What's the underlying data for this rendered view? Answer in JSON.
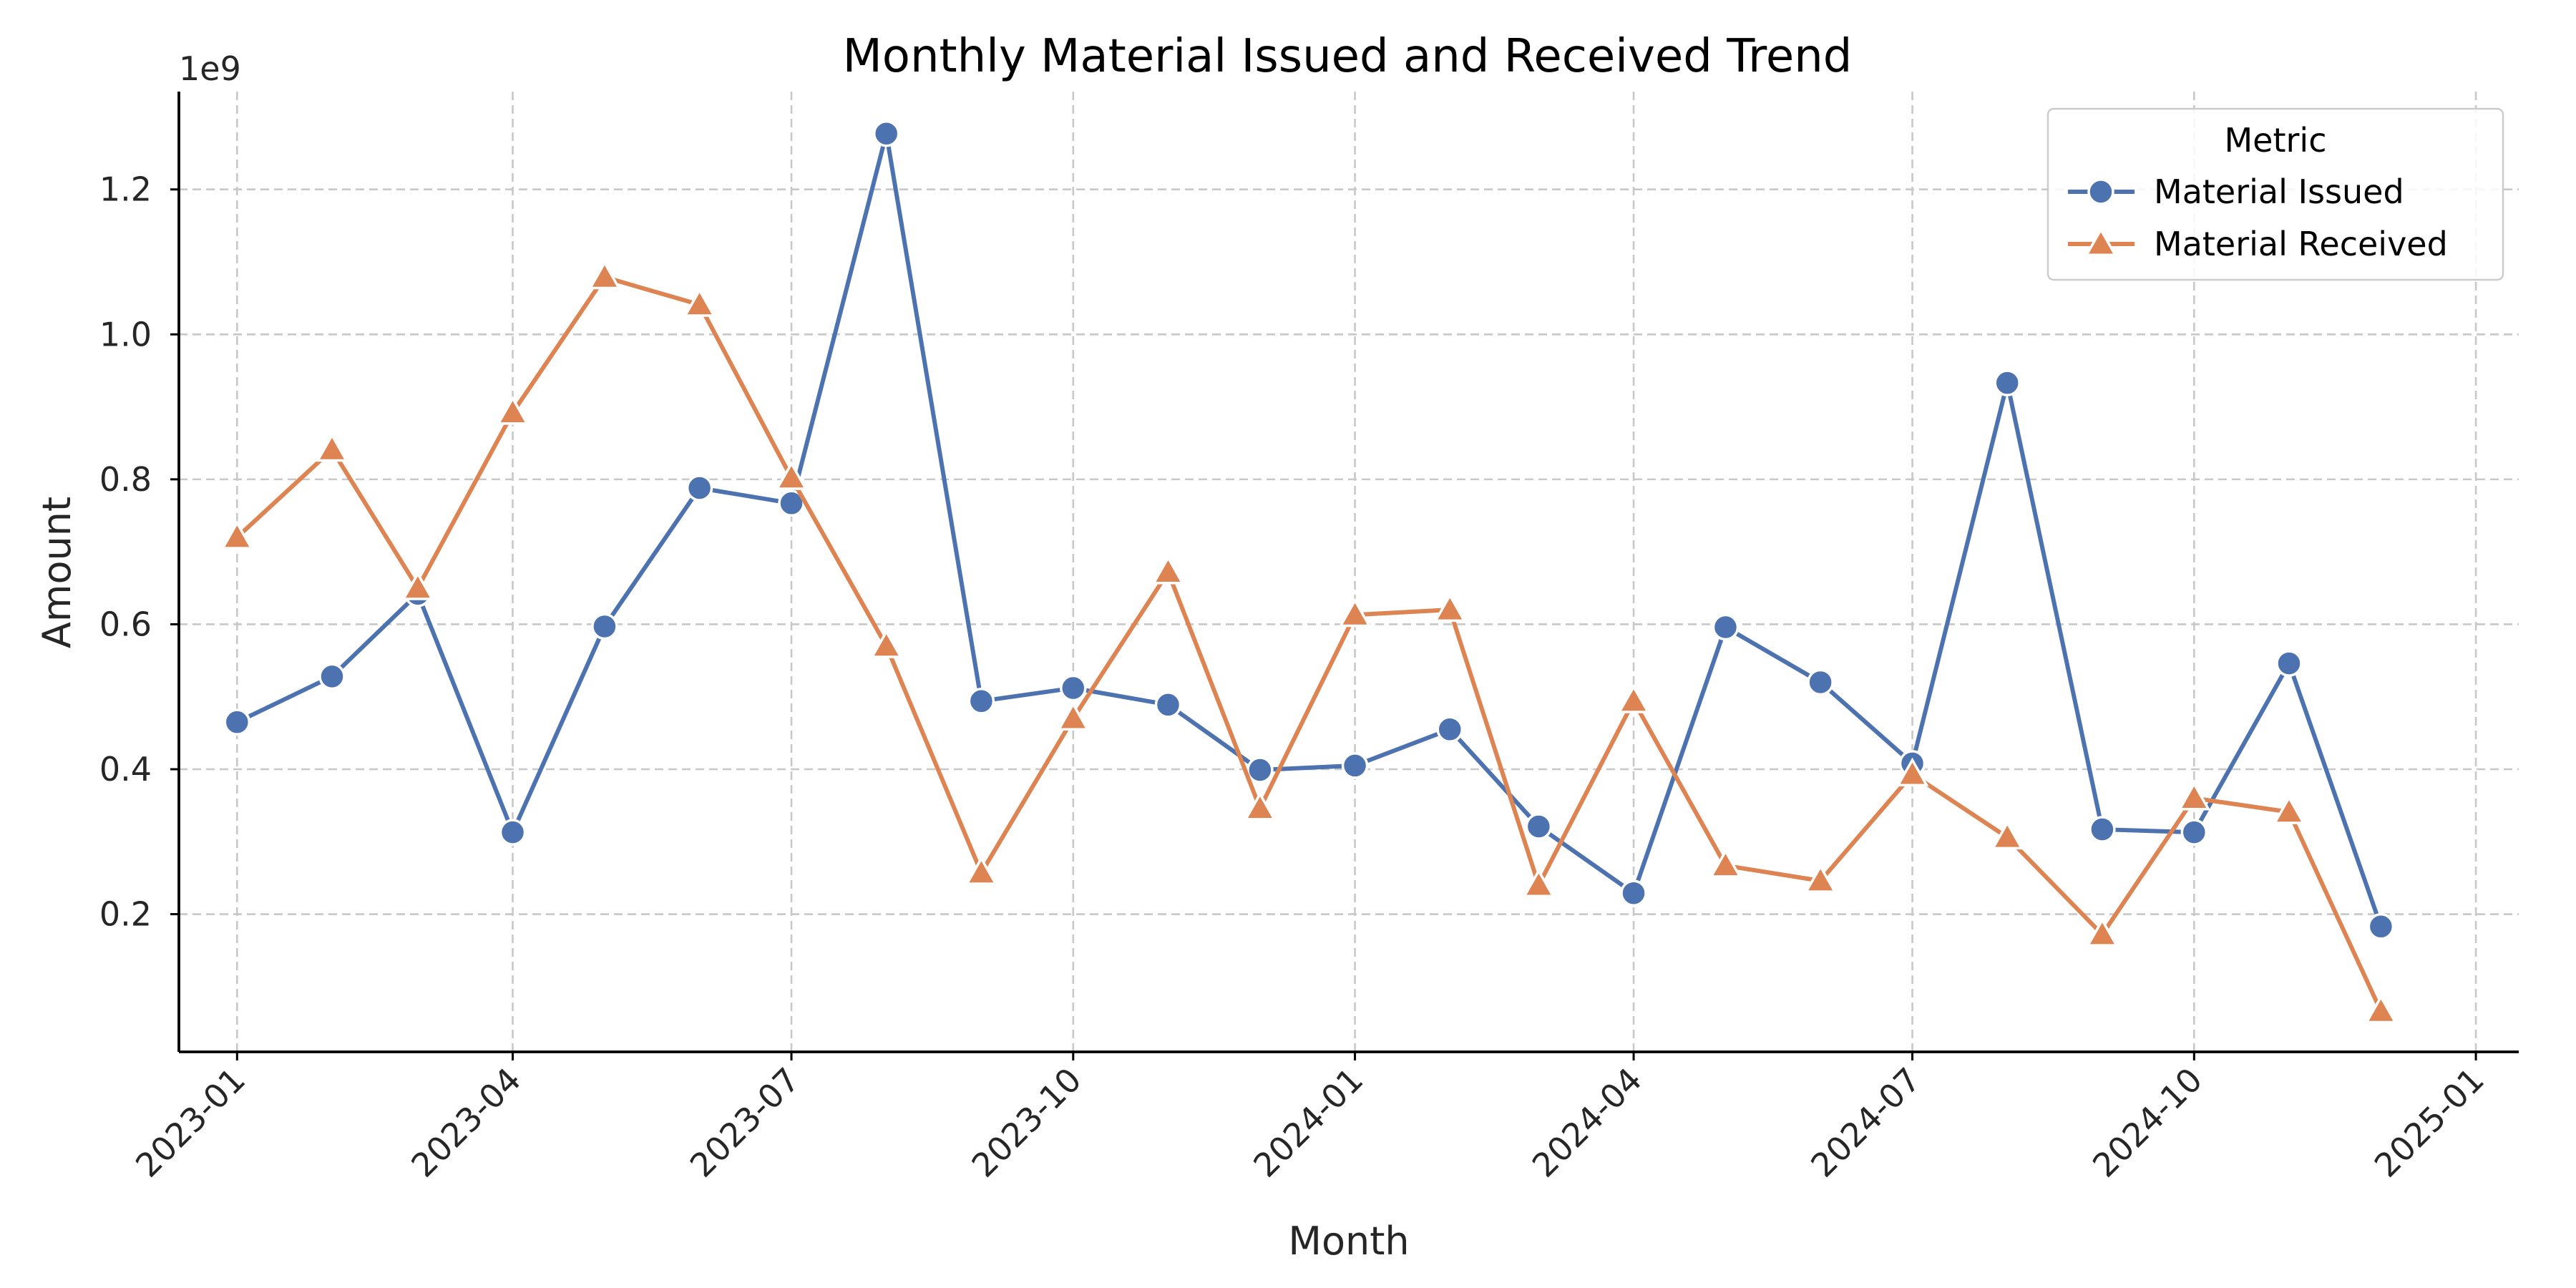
{
  "chart_data": {
    "type": "line",
    "title": "Monthly Material Issued and Received Trend",
    "xlabel": "Month",
    "ylabel": "Amount",
    "y_offset_label": "1e9",
    "x_ticks": [
      "2023-01",
      "2023-04",
      "2023-07",
      "2023-10",
      "2024-01",
      "2024-04",
      "2024-07",
      "2024-10",
      "2025-01"
    ],
    "y_ticks": [
      "0.2",
      "0.4",
      "0.6",
      "0.8",
      "1.0",
      "1.2"
    ],
    "x_range": [
      "2022-12-13",
      "2025-01-15"
    ],
    "ylim": [
      0.01,
      1.335
    ],
    "grid": true,
    "legend": {
      "title": "Metric",
      "placement": "top-right"
    },
    "x": [
      "2023-01",
      "2023-02",
      "2023-03",
      "2023-04",
      "2023-05",
      "2023-06",
      "2023-07",
      "2023-08",
      "2023-09",
      "2023-10",
      "2023-11",
      "2023-12",
      "2024-01",
      "2024-02",
      "2024-03",
      "2024-04",
      "2024-05",
      "2024-06",
      "2024-07",
      "2024-08",
      "2024-09",
      "2024-10",
      "2024-11",
      "2024-12"
    ],
    "series": [
      {
        "name": "Material Issued",
        "color": "#4c72b0",
        "marker": "circle",
        "values": [
          0.465,
          0.528,
          0.642,
          0.313,
          0.597,
          0.788,
          0.767,
          1.277,
          0.494,
          0.512,
          0.489,
          0.399,
          0.405,
          0.455,
          0.321,
          0.229,
          0.596,
          0.52,
          0.408,
          0.933,
          0.317,
          0.313,
          0.546,
          0.183
        ]
      },
      {
        "name": "Material Received",
        "color": "#dd8452",
        "marker": "triangle",
        "values": [
          0.72,
          0.841,
          0.65,
          0.892,
          1.079,
          1.041,
          0.802,
          0.57,
          0.257,
          0.47,
          0.672,
          0.346,
          0.613,
          0.62,
          0.24,
          0.494,
          0.267,
          0.246,
          0.393,
          0.306,
          0.172,
          0.36,
          0.341,
          0.066
        ]
      }
    ]
  }
}
